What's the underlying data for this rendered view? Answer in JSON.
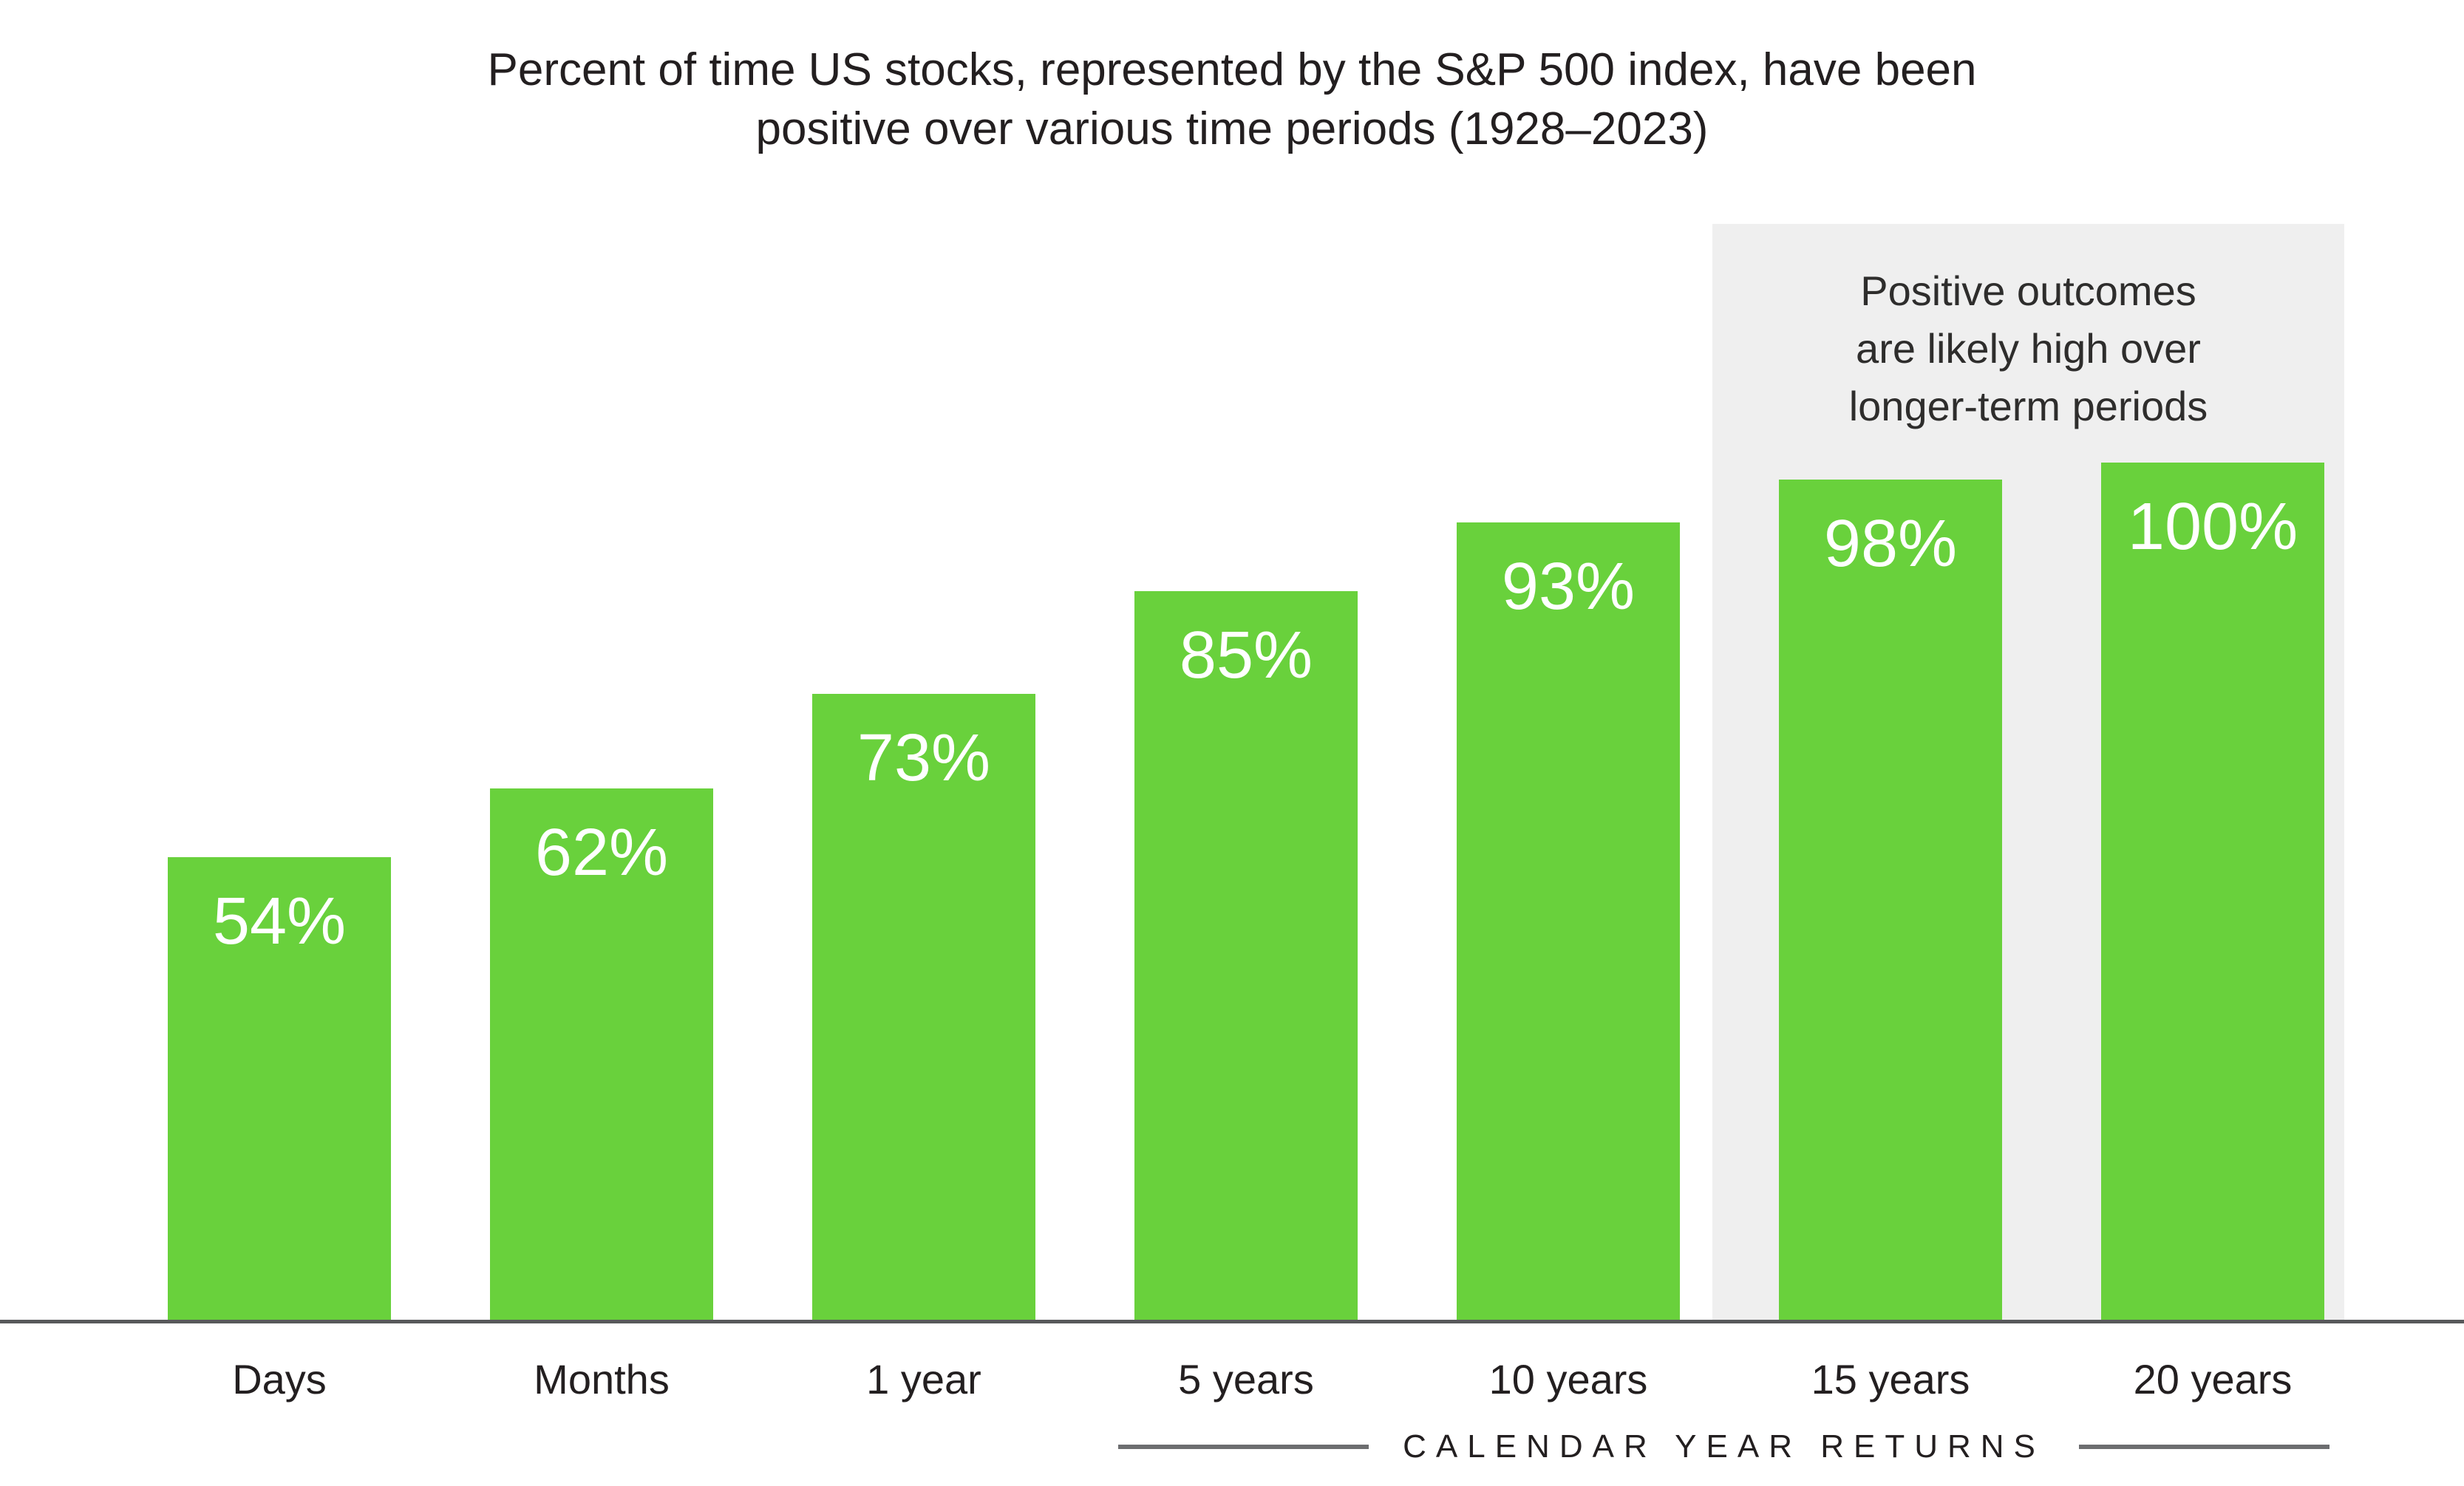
{
  "header": {
    "title_lines": [
      "Percent of time US stocks, represented by the S&P 500 index, have been",
      "positive over various time periods (1928–2023)"
    ]
  },
  "annotation": {
    "lines": [
      "Positive outcomes",
      "are likely high over",
      "longer-term periods"
    ]
  },
  "footer": {
    "label": "CALENDAR YEAR RETURNS"
  },
  "chart_data": {
    "type": "bar",
    "title": "Percent of time US stocks, represented by the S&P 500 index, have been positive over various time periods (1928–2023)",
    "categories": [
      "Days",
      "Months",
      "1 year",
      "5 years",
      "10 years",
      "15 years",
      "20 years"
    ],
    "values": [
      54,
      62,
      73,
      85,
      93,
      98,
      100
    ],
    "value_labels": [
      "54%",
      "62%",
      "73%",
      "85%",
      "93%",
      "98%",
      "100%"
    ],
    "xlabel": "CALENDAR YEAR RETURNS",
    "ylabel": "",
    "ylim": [
      0,
      100
    ],
    "grid": false,
    "legend": false,
    "bar_label_position": "inside-top",
    "highlight": {
      "categories": [
        "15 years",
        "20 years"
      ],
      "note": "Positive outcomes are likely high over longer-term periods"
    },
    "colors": {
      "bar": "#69d13c",
      "bar_label": "#ffffff",
      "highlight_bg": "#efefef",
      "axis_line": "#58595b",
      "footer_line": "#6d6e70",
      "text": "#231f20"
    }
  }
}
